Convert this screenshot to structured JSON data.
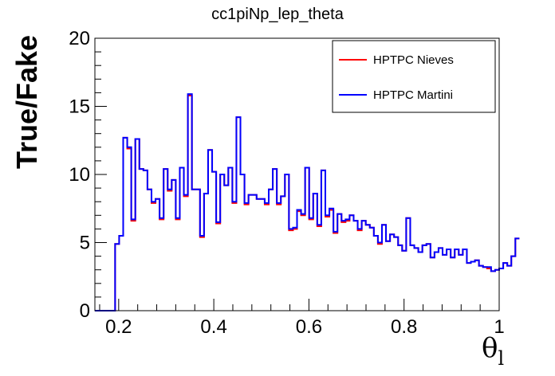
{
  "chart_data": {
    "type": "line",
    "title": "cc1piNp_lep_theta",
    "ylabel": "True/Fake",
    "xlabel_main": "θ",
    "xlabel_sub": "l",
    "xlim": [
      0.15,
      1.0
    ],
    "ylim": [
      0,
      20
    ],
    "xticks": [
      0.2,
      0.4,
      0.6,
      0.8,
      1.0
    ],
    "xtick_labels": [
      "0.2",
      "0.4",
      "0.6",
      "0.8",
      "1"
    ],
    "yticks": [
      0,
      5,
      10,
      15,
      20
    ],
    "ytick_labels": [
      "0",
      "5",
      "10",
      "15",
      "20"
    ],
    "grid": false,
    "legend_position": "top-right",
    "bin_edges_start": 0.15,
    "bin_width": 0.0085,
    "series": [
      {
        "name": "HPTPC Nieves",
        "color": "#ff0000",
        "values": [
          0,
          0,
          0,
          0,
          0,
          4.9,
          5.5,
          12.7,
          11.9,
          6.6,
          12.6,
          10.4,
          10.3,
          8.9,
          7.9,
          8.2,
          6.7,
          10.4,
          8.8,
          9.6,
          6.7,
          10.5,
          8.4,
          15.8,
          8.9,
          8.9,
          5.4,
          8.6,
          11.8,
          10.2,
          6.4,
          10.0,
          9.2,
          10.5,
          7.9,
          14.2,
          10.0,
          7.8,
          8.5,
          8.5,
          8.2,
          8.2,
          7.8,
          8.9,
          10.4,
          7.8,
          8.4,
          10.0,
          5.9,
          6.0,
          7.3,
          7.0,
          10.5,
          6.7,
          8.6,
          6.2,
          10.3,
          6.9,
          7.4,
          5.7,
          7.1,
          6.5,
          6.6,
          7.0,
          6.6,
          5.9,
          6.6,
          6.3,
          6.1,
          5.5,
          4.9,
          6.3,
          5.1,
          5.6,
          5.4,
          4.8,
          4.4,
          6.8,
          4.8,
          4.6,
          4.3,
          4.8,
          4.9,
          3.9,
          4.3,
          4.6,
          4.1,
          4.5,
          3.9,
          4.5,
          4.1,
          4.5,
          3.5,
          3.6,
          3.7,
          3.3,
          3.2,
          3.1,
          2.9,
          3.0,
          3.1,
          3.5,
          3.3,
          4.0,
          5.3
        ]
      },
      {
        "name": "HPTPC Martini",
        "color": "#0000ff",
        "values": [
          0,
          0,
          0,
          0,
          0,
          4.9,
          5.5,
          12.7,
          12.0,
          6.7,
          12.6,
          10.4,
          10.3,
          8.9,
          8.0,
          8.2,
          6.8,
          10.4,
          8.9,
          9.6,
          6.8,
          10.5,
          8.5,
          15.9,
          8.9,
          8.9,
          5.5,
          8.6,
          11.8,
          10.2,
          6.5,
          10.0,
          9.2,
          10.5,
          8.0,
          14.2,
          10.0,
          7.9,
          8.5,
          8.5,
          8.2,
          8.2,
          7.9,
          8.9,
          10.4,
          7.9,
          8.4,
          10.0,
          6.0,
          6.1,
          7.4,
          7.1,
          10.5,
          6.8,
          8.6,
          6.3,
          10.3,
          7.0,
          7.5,
          5.8,
          7.1,
          6.6,
          6.7,
          7.0,
          6.6,
          6.0,
          6.6,
          6.3,
          6.1,
          5.5,
          5.0,
          6.3,
          5.1,
          5.6,
          5.4,
          4.8,
          4.4,
          6.8,
          4.8,
          4.6,
          4.3,
          4.8,
          4.9,
          3.9,
          4.3,
          4.6,
          4.1,
          4.5,
          3.9,
          4.5,
          4.1,
          4.5,
          3.5,
          3.6,
          3.7,
          3.3,
          3.2,
          3.2,
          2.9,
          3.0,
          3.1,
          3.5,
          3.3,
          4.0,
          5.3
        ]
      }
    ]
  }
}
